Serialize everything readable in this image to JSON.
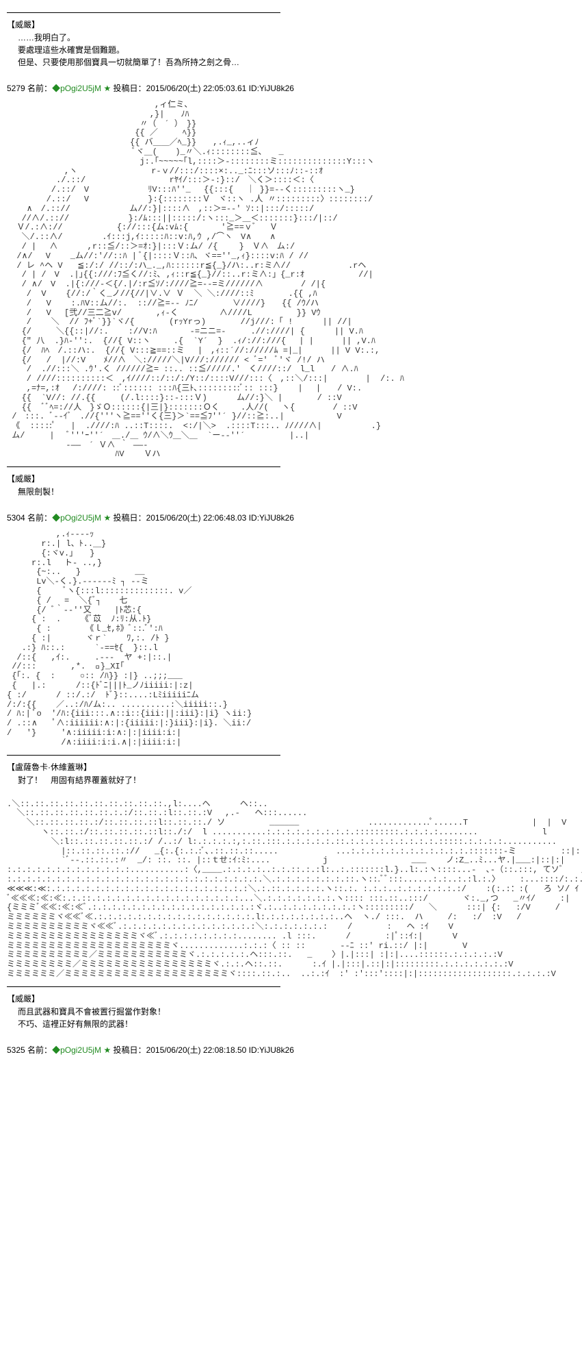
{
  "posts": [
    {
      "speaker": "【威嚴】",
      "lines": [
        "……我明白了。",
        "要處理這些水確實是個難題。",
        "但是、只要使用那個寶具一切就簡單了！吾為所持之劍之骨…"
      ]
    },
    {
      "num": "5279",
      "name_label": "名前：",
      "trip": "◆pOgi2U5jM",
      "star": "★",
      "date_label": "投稿日：",
      "date": "2015/06/20(土) 22:05:03.61",
      "id_label": "ID:",
      "id": "YiJU8k26",
      "speaker": "【威嚴】",
      "lines": [
        "無限劍製！"
      ]
    },
    {
      "num": "5304",
      "name_label": "名前：",
      "trip": "◆pOgi2U5jM",
      "star": "★",
      "date_label": "投稿日：",
      "date": "2015/06/20(土) 22:06:48.03",
      "id_label": "ID:",
      "id": "YiJU8k26",
      "speaker": "【盧薩魯卡·休維蓋琳】",
      "lines": [
        "對了！　用固有結界覆蓋就好了！"
      ],
      "speaker2": "【威嚴】",
      "lines2": [
        "而且武器和寶具不會被置行掘當作對象！",
        "不巧、這裡正好有無限的武器！"
      ]
    },
    {
      "num": "5325",
      "name_label": "名前：",
      "trip": "◆pOgi2U5jM",
      "star": "★",
      "date_label": "投稿日：",
      "date": "2015/06/20(土) 22:08:18.50",
      "id_label": "ID:",
      "id": "YiJU8k26"
    }
  ],
  "colors": {
    "trip": "#228b22",
    "text": "#000000",
    "bg": "#ffffff"
  }
}
